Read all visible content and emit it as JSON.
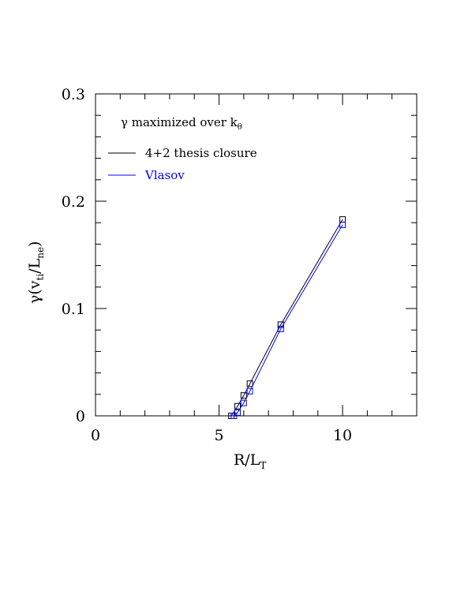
{
  "chart_data": {
    "type": "line",
    "annotation": "γ maximized over k",
    "annotation_sub": "θ",
    "xlabel": "R/L",
    "xlabel_sub": "T",
    "ylabel_parts": [
      "γ(v",
      "ti",
      "/L",
      "ne",
      ")"
    ],
    "xlim": [
      0,
      13
    ],
    "ylim": [
      0,
      0.3
    ],
    "x_ticks": [
      0,
      5,
      10
    ],
    "x_tick_labels": [
      "0",
      "5",
      "10"
    ],
    "y_ticks": [
      0,
      0.1,
      0.2,
      0.3
    ],
    "y_tick_labels": [
      "0",
      "0.1",
      "0.2",
      "0.3"
    ],
    "legend_position": "top-left",
    "grid": false,
    "series": [
      {
        "name": "4+2 thesis closure",
        "color": "#000000",
        "x": [
          5.5,
          5.75,
          6.0,
          6.25,
          7.5,
          10.0
        ],
        "y": [
          0.0,
          0.009,
          0.019,
          0.03,
          0.085,
          0.183
        ]
      },
      {
        "name": "Vlasov",
        "color": "#0000ff",
        "x": [
          5.6,
          5.75,
          6.0,
          6.25,
          7.5,
          10.0
        ],
        "y": [
          0.0,
          0.003,
          0.012,
          0.023,
          0.081,
          0.178
        ]
      }
    ]
  }
}
